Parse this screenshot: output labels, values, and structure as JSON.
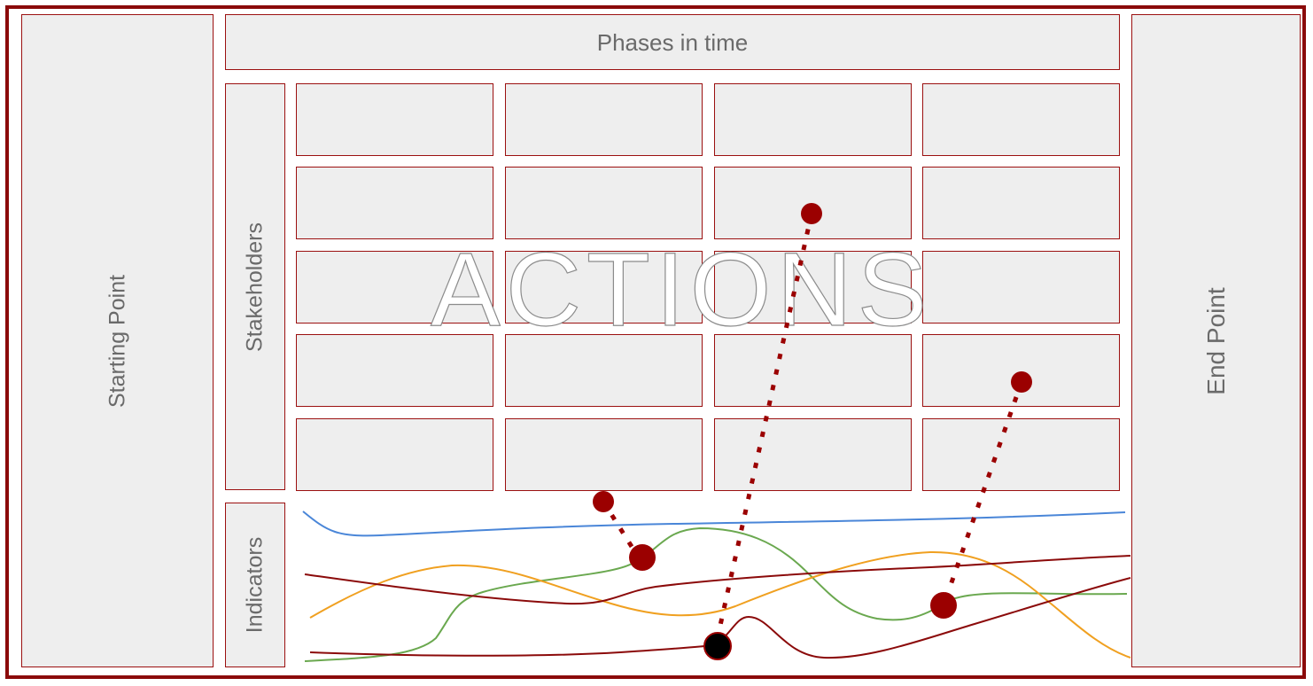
{
  "labels": {
    "starting_point": "Starting Point",
    "end_point": "End Point",
    "phases": "Phases in time",
    "stakeholders": "Stakeholders",
    "indicators": "Indicators",
    "actions": "ACTIONS"
  },
  "grid": {
    "rows": 5,
    "columns": 4
  },
  "colors": {
    "frame": "#8b0a0a",
    "box_fill": "#eeeeee",
    "marker": "#9b0000",
    "indicator_blue": "#4a86d8",
    "indicator_green": "#6aa84f",
    "indicator_orange": "#f0a020",
    "indicator_darkred": "#8b0a0a"
  }
}
